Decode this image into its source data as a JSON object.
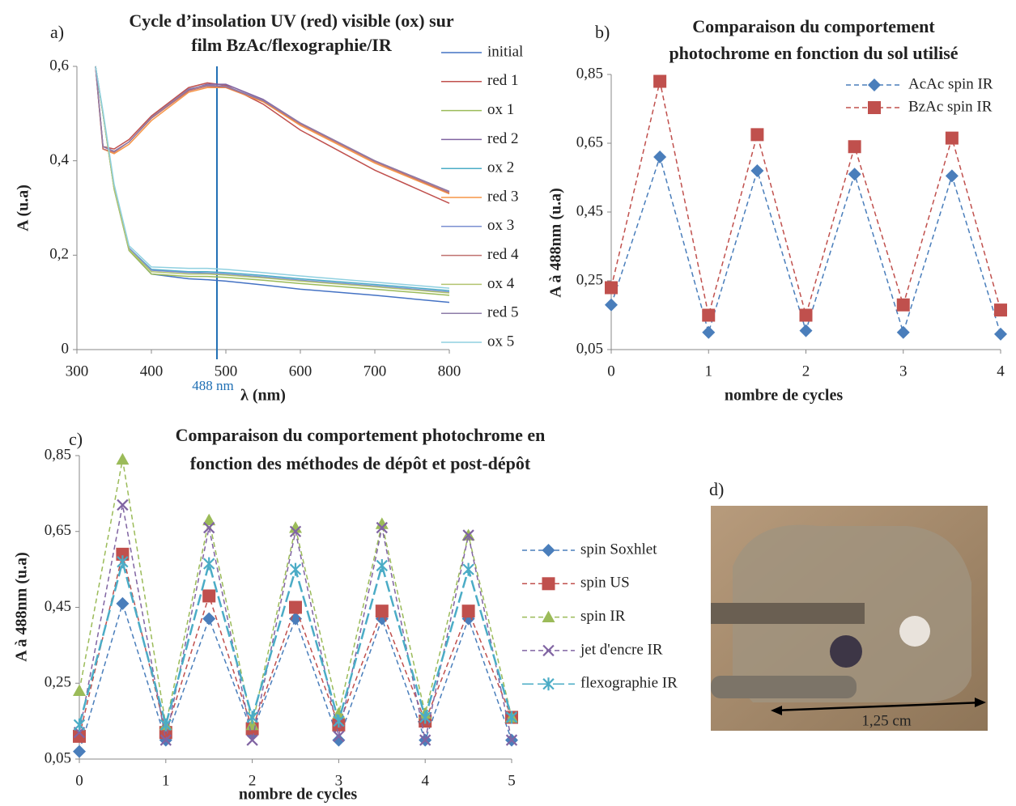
{
  "chart_data": [
    {
      "type": "line",
      "panel": "a)",
      "title": [
        "Cycle d’insolation UV (red) visible (ox) sur",
        "film BzAc/flexographie/IR"
      ],
      "xlabel": "λ (nm)",
      "ylabel": "A (u.a)",
      "x": [
        325,
        335,
        350,
        370,
        400,
        450,
        475,
        500,
        550,
        600,
        700,
        800
      ],
      "xlim": [
        300,
        800
      ],
      "xticks": [
        300,
        400,
        500,
        600,
        700,
        800
      ],
      "ylim": [
        0,
        0.6
      ],
      "yticks": [
        0,
        {
          "value": 0.2,
          "label": "0,2"
        },
        {
          "value": 0.4,
          "label": "0,4"
        },
        {
          "value": 0.6,
          "label": "0,6"
        }
      ],
      "grid": false,
      "marker_line": {
        "value": 488,
        "label": "488 nm",
        "color": "#1f6fb4"
      },
      "series": [
        {
          "name": "initial",
          "color": "#4472c4",
          "values": [
            0.6,
            0.5,
            0.34,
            0.21,
            0.16,
            0.15,
            0.148,
            0.145,
            0.137,
            0.128,
            0.115,
            0.1
          ]
        },
        {
          "name": "red 1",
          "color": "#c0504d",
          "values": [
            0.6,
            0.43,
            0.425,
            0.445,
            0.495,
            0.555,
            0.565,
            0.56,
            0.52,
            0.465,
            0.38,
            0.31
          ]
        },
        {
          "name": "ox 1",
          "color": "#9bbb59",
          "values": [
            0.6,
            0.5,
            0.34,
            0.21,
            0.16,
            0.155,
            0.155,
            0.153,
            0.147,
            0.14,
            0.128,
            0.115
          ]
        },
        {
          "name": "red 2",
          "color": "#8064a2",
          "values": [
            0.6,
            0.43,
            0.42,
            0.44,
            0.49,
            0.55,
            0.562,
            0.562,
            0.53,
            0.48,
            0.4,
            0.335
          ]
        },
        {
          "name": "ox 2",
          "color": "#4bacc6",
          "values": [
            0.6,
            0.5,
            0.345,
            0.215,
            0.17,
            0.165,
            0.165,
            0.163,
            0.157,
            0.15,
            0.138,
            0.125
          ]
        },
        {
          "name": "red 3",
          "color": "#f79646",
          "values": [
            0.6,
            0.425,
            0.415,
            0.435,
            0.485,
            0.545,
            0.555,
            0.555,
            0.525,
            0.475,
            0.395,
            0.33
          ]
        },
        {
          "name": "ox 3",
          "color": "#7b8fd1",
          "values": [
            0.6,
            0.5,
            0.345,
            0.215,
            0.168,
            0.163,
            0.162,
            0.16,
            0.154,
            0.147,
            0.135,
            0.122
          ]
        },
        {
          "name": "red 4",
          "color": "#c0726f",
          "values": [
            0.6,
            0.425,
            0.418,
            0.44,
            0.49,
            0.548,
            0.558,
            0.556,
            0.527,
            0.478,
            0.398,
            0.332
          ]
        },
        {
          "name": "ox 4",
          "color": "#b3c46f",
          "values": [
            0.6,
            0.5,
            0.34,
            0.212,
            0.165,
            0.16,
            0.16,
            0.158,
            0.152,
            0.145,
            0.133,
            0.12
          ]
        },
        {
          "name": "red 5",
          "color": "#8e7ca8",
          "values": [
            0.6,
            0.43,
            0.42,
            0.44,
            0.492,
            0.552,
            0.56,
            0.558,
            0.528,
            0.48,
            0.4,
            0.335
          ]
        },
        {
          "name": "ox 5",
          "color": "#8fd0e0",
          "values": [
            0.6,
            0.505,
            0.35,
            0.22,
            0.175,
            0.172,
            0.172,
            0.17,
            0.163,
            0.156,
            0.143,
            0.13
          ]
        }
      ]
    },
    {
      "type": "line",
      "panel": "b)",
      "title": [
        "Comparaison du comportement",
        "photochrome en fonction du sol utilisé"
      ],
      "xlabel": "nombre de cycles",
      "ylabel": "A à 488nm (u.a)",
      "x": [
        0,
        0.5,
        1,
        1.5,
        2,
        2.5,
        3,
        3.5,
        4
      ],
      "xlim": [
        0,
        4
      ],
      "xticks": [
        0,
        1,
        2,
        3,
        4
      ],
      "ylim": [
        0.05,
        0.85
      ],
      "yticks": [
        {
          "value": 0.05,
          "label": "0,05"
        },
        {
          "value": 0.25,
          "label": "0,25"
        },
        {
          "value": 0.45,
          "label": "0,45"
        },
        {
          "value": 0.65,
          "label": "0,65"
        },
        {
          "value": 0.85,
          "label": "0,85"
        }
      ],
      "grid": false,
      "series": [
        {
          "name": "AcAc spin IR",
          "color": "#4a7ebb",
          "marker": "diamond",
          "values": [
            0.18,
            0.61,
            0.1,
            0.57,
            0.105,
            0.56,
            0.1,
            0.555,
            0.095
          ]
        },
        {
          "name": "BzAc spin IR",
          "color": "#c0504d",
          "marker": "square",
          "values": [
            0.23,
            0.83,
            0.15,
            0.675,
            0.15,
            0.64,
            0.18,
            0.665,
            0.165
          ]
        }
      ]
    },
    {
      "type": "line",
      "panel": "c)",
      "title": [
        "Comparaison du comportement photochrome en",
        "fonction des méthodes de dépôt et post-dépôt"
      ],
      "xlabel": "nombre de cycles",
      "ylabel": "A à 488nm (u.a)",
      "x": [
        0,
        0.5,
        1,
        1.5,
        2,
        2.5,
        3,
        3.5,
        4,
        4.5,
        5
      ],
      "xlim": [
        0,
        5
      ],
      "xticks": [
        0,
        1,
        2,
        3,
        4,
        5
      ],
      "ylim": [
        0.05,
        0.85
      ],
      "yticks": [
        {
          "value": 0.05,
          "label": "0,05"
        },
        {
          "value": 0.25,
          "label": "0,25"
        },
        {
          "value": 0.45,
          "label": "0,45"
        },
        {
          "value": 0.65,
          "label": "0,65"
        },
        {
          "value": 0.85,
          "label": "0,85"
        }
      ],
      "grid": false,
      "series": [
        {
          "name": "spin Soxhlet",
          "color": "#4a7ebb",
          "marker": "diamond",
          "values": [
            0.07,
            0.46,
            0.1,
            0.42,
            0.12,
            0.42,
            0.1,
            0.42,
            0.1,
            0.42,
            0.1
          ]
        },
        {
          "name": "spin US",
          "color": "#c0504d",
          "marker": "square",
          "values": [
            0.11,
            0.59,
            0.12,
            0.48,
            0.13,
            0.45,
            0.14,
            0.44,
            0.15,
            0.44,
            0.16
          ]
        },
        {
          "name": "spin IR",
          "color": "#9bbb59",
          "marker": "triangle",
          "values": [
            0.23,
            0.84,
            0.14,
            0.68,
            0.14,
            0.66,
            0.17,
            0.67,
            0.17,
            0.64,
            0.16
          ]
        },
        {
          "name": "jet d'encre IR",
          "color": "#8064a2",
          "marker": "cross",
          "values": [
            0.12,
            0.72,
            0.1,
            0.66,
            0.1,
            0.65,
            0.11,
            0.66,
            0.1,
            0.64,
            0.1
          ]
        },
        {
          "name": "flexographie IR",
          "color": "#4bacc6",
          "marker": "star",
          "values": [
            0.14,
            0.57,
            0.14,
            0.565,
            0.16,
            0.55,
            0.15,
            0.56,
            0.16,
            0.55,
            0.16
          ]
        }
      ]
    }
  ],
  "photo": {
    "panel": "d)",
    "scale_label": "1,25 cm"
  }
}
